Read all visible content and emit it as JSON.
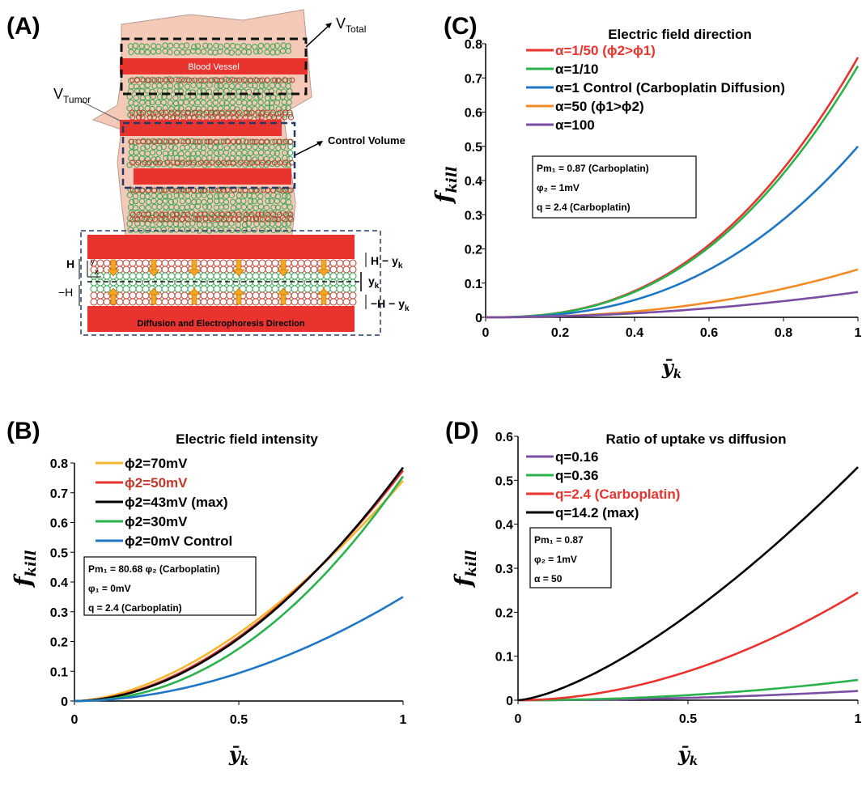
{
  "panel_a": {
    "label": "(A)",
    "v_total": "V",
    "v_total_sub": "Total",
    "v_tumor": "V",
    "v_tumor_sub": "Tumor",
    "blood_vessel": "Blood Vessel",
    "control_volume": "Control Volume",
    "direction": "Diffusion and Electrophoresis Direction",
    "y_axis": "y",
    "x_axis": "x",
    "h_top": "H",
    "h_bot": "−H",
    "h_minus_yk": "H − y",
    "yk": "y",
    "neg_h_minus_yk": "−H − y",
    "sub_k": "k",
    "colors": {
      "vessel": "#e8332e",
      "tissue": "#f4c9b8",
      "cells_green": "#35a853",
      "cells_red": "#c0392b",
      "arrow": "#f5a623"
    }
  },
  "chart_data": [
    {
      "id": "C",
      "type": "line",
      "panel_label": "(C)",
      "title": "Electric field direction",
      "xlabel": "ȳ",
      "xlabel_sub": "k",
      "ylabel": "f",
      "ylabel_sub": "kill",
      "xlim": [
        0,
        1
      ],
      "ylim": [
        0,
        0.8
      ],
      "xticks": [
        0,
        0.2,
        0.4,
        0.6,
        0.8,
        1
      ],
      "xtick_labels": [
        "0",
        "0.2",
        "0.4",
        "0.6",
        "0.8",
        "1"
      ],
      "yticks": [
        0,
        0.1,
        0.2,
        0.3,
        0.4,
        0.5,
        0.6,
        0.7,
        0.8
      ],
      "ytick_labels": [
        "0",
        "0.1",
        "0.2",
        "0.3",
        "0.4",
        "0.5",
        "0.6",
        "0.7",
        "0.8"
      ],
      "legend_position": "top-left",
      "params": [
        "Pm₁ = 0.87 (Carboplatin)",
        "φ₂ = 1mV",
        "q = 2.4 (Carboplatin)"
      ],
      "series": [
        {
          "name": "α=1/50 (ϕ2>ϕ1)",
          "color": "#e8332e",
          "label_color": "#e8332e",
          "end": 0.76,
          "p": 2.5
        },
        {
          "name": "α=1/10",
          "color": "#2bb24c",
          "label_color": "#000000",
          "end": 0.735,
          "p": 2.5
        },
        {
          "name": "α=1 Control (Carboplatin Diffusion)",
          "color": "#1f77c4",
          "label_color": "#000000",
          "end": 0.5,
          "p": 2.5
        },
        {
          "name": "α=50 (ϕ1>ϕ2)",
          "color": "#f28c28",
          "label_color": "#000000",
          "end": 0.14,
          "p": 2.3
        },
        {
          "name": "α=100",
          "color": "#7a4fa3",
          "label_color": "#000000",
          "end": 0.074,
          "p": 2.0
        }
      ]
    },
    {
      "id": "B",
      "type": "line",
      "panel_label": "(B)",
      "title": "Electric field intensity",
      "xlabel": "ȳ",
      "xlabel_sub": "k",
      "ylabel": "f",
      "ylabel_sub": "kill",
      "xlim": [
        0,
        1
      ],
      "ylim": [
        0,
        0.8
      ],
      "xticks": [
        0,
        0.5,
        1
      ],
      "xtick_labels": [
        "0",
        "0.5",
        "1"
      ],
      "yticks": [
        0,
        0.1,
        0.2,
        0.3,
        0.4,
        0.5,
        0.6,
        0.7,
        0.8
      ],
      "ytick_labels": [
        "0",
        "0.1",
        "0.2",
        "0.3",
        "0.4",
        "0.5",
        "0.6",
        "0.7",
        "0.8"
      ],
      "legend_position": "top-left",
      "params": [
        "Pm₁ = 80.68 φ₂ (Carboplatin)",
        "φ₁ = 0mV",
        "q = 2.4 (Carboplatin)"
      ],
      "series": [
        {
          "name": "ϕ2=70mV",
          "color": "#f5b731",
          "label_color": "#000000",
          "end": 0.74,
          "p": 1.7
        },
        {
          "name": "ϕ2=50mV",
          "color": "#e8332e",
          "label_color": "#c0392b",
          "end": 0.775,
          "p": 1.85
        },
        {
          "name": "ϕ2=43mV (max)",
          "color": "#000000",
          "label_color": "#000000",
          "end": 0.785,
          "p": 1.9
        },
        {
          "name": "ϕ2=30mV",
          "color": "#2bb24c",
          "label_color": "#000000",
          "end": 0.755,
          "p": 2.1
        },
        {
          "name": "ϕ2=0mV Control",
          "color": "#1f77c4",
          "label_color": "#000000",
          "end": 0.35,
          "p": 1.9
        }
      ]
    },
    {
      "id": "D",
      "type": "line",
      "panel_label": "(D)",
      "title": "Ratio of uptake vs diffusion",
      "xlabel": "ȳ",
      "xlabel_sub": "k",
      "ylabel": "f",
      "ylabel_sub": "kill",
      "xlim": [
        0,
        1
      ],
      "ylim": [
        0,
        0.6
      ],
      "xticks": [
        0,
        0.5,
        1
      ],
      "xtick_labels": [
        "0",
        "0.5",
        "1"
      ],
      "yticks": [
        0,
        0.1,
        0.2,
        0.3,
        0.4,
        0.5,
        0.6
      ],
      "ytick_labels": [
        "0",
        "0.1",
        "0.2",
        "0.3",
        "0.4",
        "0.5",
        "0.6"
      ],
      "legend_position": "top-left",
      "params": [
        "Pm₁ = 0.87",
        "φ₂ = 1mV",
        "α = 50"
      ],
      "series": [
        {
          "name": "q=0.16",
          "color": "#7a4fa3",
          "label_color": "#000000",
          "end": 0.021,
          "p": 2.0
        },
        {
          "name": "q=0.36",
          "color": "#2bb24c",
          "label_color": "#000000",
          "end": 0.046,
          "p": 2.0
        },
        {
          "name": "q=2.4 (Carboplatin)",
          "color": "#e8332e",
          "label_color": "#e8332e",
          "end": 0.245,
          "p": 1.9
        },
        {
          "name": "q=14.2 (max)",
          "color": "#000000",
          "label_color": "#000000",
          "end": 0.53,
          "p": 1.45
        }
      ]
    }
  ]
}
